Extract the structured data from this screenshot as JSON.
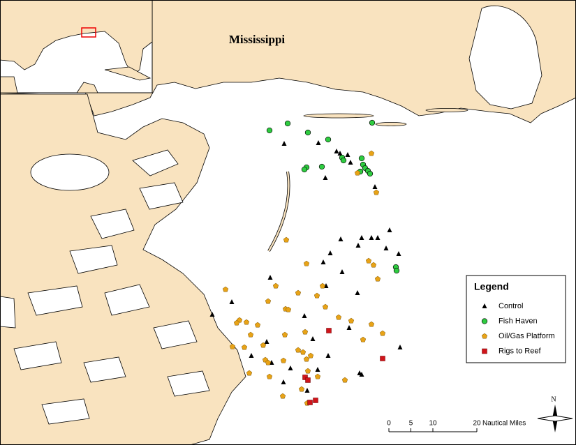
{
  "map": {
    "state_label": "Mississippi",
    "legend": {
      "title": "Legend",
      "items": [
        "Control",
        "Fish Haven",
        "Oil/Gas Platform",
        "Rigs to Reef"
      ]
    },
    "scale_bar": {
      "ticks": [
        0,
        5,
        10,
        20
      ],
      "unit": "Nautical Miles"
    },
    "north_label": "N"
  }
}
